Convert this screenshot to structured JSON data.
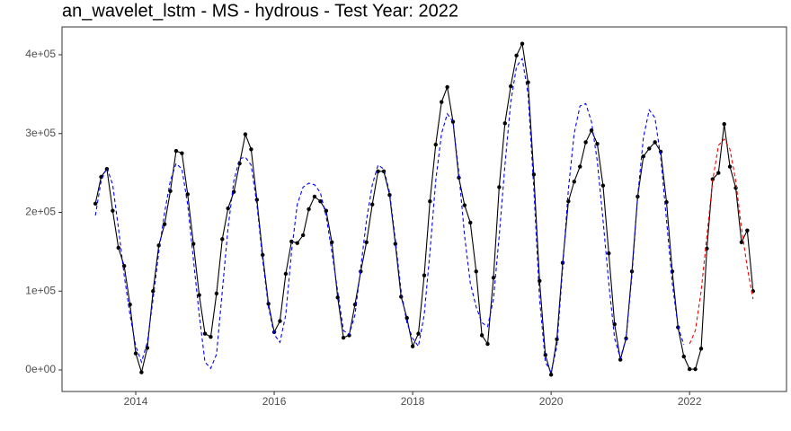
{
  "chart_data": {
    "type": "line",
    "title": "an_wavelet_lstm - MS - hydrous - Test Year: 2022",
    "x": [
      2013.417,
      2013.5,
      2013.583,
      2013.667,
      2013.75,
      2013.833,
      2013.917,
      2014,
      2014.083,
      2014.167,
      2014.25,
      2014.333,
      2014.417,
      2014.5,
      2014.583,
      2014.667,
      2014.75,
      2014.833,
      2014.917,
      2015,
      2015.083,
      2015.167,
      2015.25,
      2015.333,
      2015.417,
      2015.5,
      2015.583,
      2015.667,
      2015.75,
      2015.833,
      2015.917,
      2016,
      2016.083,
      2016.167,
      2016.25,
      2016.333,
      2016.417,
      2016.5,
      2016.583,
      2016.667,
      2016.75,
      2016.833,
      2016.917,
      2017,
      2017.083,
      2017.167,
      2017.25,
      2017.333,
      2017.417,
      2017.5,
      2017.583,
      2017.667,
      2017.75,
      2017.833,
      2017.917,
      2018,
      2018.083,
      2018.167,
      2018.25,
      2018.333,
      2018.417,
      2018.5,
      2018.583,
      2018.667,
      2018.75,
      2018.833,
      2018.917,
      2019,
      2019.083,
      2019.167,
      2019.25,
      2019.333,
      2019.417,
      2019.5,
      2019.583,
      2019.667,
      2019.75,
      2019.833,
      2019.917,
      2020,
      2020.083,
      2020.167,
      2020.25,
      2020.333,
      2020.417,
      2020.5,
      2020.583,
      2020.667,
      2020.75,
      2020.833,
      2020.917,
      2021,
      2021.083,
      2021.167,
      2021.25,
      2021.333,
      2021.417,
      2021.5,
      2021.583,
      2021.667,
      2021.75,
      2021.833,
      2021.917,
      2022,
      2022.083,
      2022.167,
      2022.25,
      2022.333,
      2022.417,
      2022.5,
      2022.583,
      2022.667,
      2022.75,
      2022.833,
      2022.917
    ],
    "series": [
      {
        "color": "#000000",
        "dashed": false,
        "markers": true,
        "values": [
          211000,
          245000,
          255000,
          202000,
          155000,
          132000,
          83000,
          21000,
          -3000,
          28000,
          100000,
          158000,
          185000,
          227000,
          278000,
          275000,
          223000,
          160000,
          95000,
          46000,
          42000,
          97000,
          166000,
          205000,
          226000,
          262000,
          299000,
          280000,
          216000,
          146000,
          84000,
          48000,
          62000,
          122000,
          163000,
          161000,
          171000,
          204000,
          220000,
          214000,
          202000,
          162000,
          92000,
          41000,
          44000,
          83000,
          125000,
          162000,
          210000,
          252000,
          252000,
          222000,
          160000,
          93000,
          66000,
          30000,
          46000,
          120000,
          214000,
          286000,
          340000,
          359000,
          315000,
          244000,
          209000,
          187000,
          125000,
          44000,
          33000,
          117000,
          232000,
          313000,
          360000,
          399000,
          414000,
          365000,
          248000,
          113000,
          19000,
          -6000,
          39000,
          136000,
          214000,
          239000,
          258000,
          289000,
          304000,
          287000,
          234000,
          148000,
          58000,
          13000,
          40000,
          125000,
          220000,
          271000,
          281000,
          289000,
          277000,
          213000,
          125000,
          54000,
          17000,
          1000,
          1000,
          27000,
          154000,
          242000,
          250000,
          312000,
          258000,
          231000,
          162000,
          177000,
          100000
        ]
      },
      {
        "color": "#0000ff",
        "dashed": true,
        "markers": false,
        "values": [
          196000,
          240000,
          257000,
          235000,
          180000,
          120000,
          70000,
          30000,
          10000,
          35000,
          90000,
          150000,
          200000,
          240000,
          262000,
          255000,
          210000,
          140000,
          70000,
          10000,
          2000,
          20000,
          100000,
          180000,
          240000,
          268000,
          270000,
          260000,
          210000,
          140000,
          80000,
          45000,
          35000,
          70000,
          150000,
          210000,
          232000,
          237000,
          235000,
          225000,
          195000,
          150000,
          100000,
          50000,
          45000,
          70000,
          130000,
          190000,
          235000,
          260000,
          255000,
          225000,
          165000,
          100000,
          60000,
          40000,
          30000,
          70000,
          150000,
          240000,
          300000,
          325000,
          315000,
          250000,
          170000,
          110000,
          80000,
          60000,
          55000,
          90000,
          170000,
          260000,
          340000,
          385000,
          395000,
          350000,
          230000,
          90000,
          10000,
          -3000,
          30000,
          130000,
          230000,
          300000,
          335000,
          338000,
          315000,
          265000,
          190000,
          110000,
          40000,
          15000,
          40000,
          120000,
          220000,
          295000,
          330000,
          320000,
          270000,
          190000,
          110000,
          55000,
          32000,
          null,
          null,
          null,
          null,
          null,
          null,
          null,
          null,
          null,
          null,
          null,
          null
        ]
      },
      {
        "color": "#ff0000",
        "dashed": true,
        "markers": false,
        "values": [
          null,
          null,
          null,
          null,
          null,
          null,
          null,
          null,
          null,
          null,
          null,
          null,
          null,
          null,
          null,
          null,
          null,
          null,
          null,
          null,
          null,
          null,
          null,
          null,
          null,
          null,
          null,
          null,
          null,
          null,
          null,
          null,
          null,
          null,
          null,
          null,
          null,
          null,
          null,
          null,
          null,
          null,
          null,
          null,
          null,
          null,
          null,
          null,
          null,
          null,
          null,
          null,
          null,
          null,
          null,
          null,
          null,
          null,
          null,
          null,
          null,
          null,
          null,
          null,
          null,
          null,
          null,
          null,
          null,
          null,
          null,
          null,
          null,
          null,
          null,
          null,
          null,
          null,
          null,
          null,
          null,
          null,
          null,
          null,
          null,
          null,
          null,
          null,
          null,
          null,
          null,
          null,
          null,
          null,
          null,
          null,
          null,
          null,
          null,
          null,
          null,
          null,
          null,
          33000,
          50000,
          100000,
          170000,
          240000,
          285000,
          293000,
          280000,
          240000,
          180000,
          130000,
          90000
        ]
      }
    ],
    "xlim": [
      2012.935,
      2023.4
    ],
    "ylim": [
      -27350,
      435300
    ],
    "xticks": [
      2014,
      2016,
      2018,
      2020,
      2022
    ],
    "yticks": [
      {
        "value": 0,
        "label": "0e+00"
      },
      {
        "value": 100000,
        "label": "1e+05"
      },
      {
        "value": 200000,
        "label": "2e+05"
      },
      {
        "value": 300000,
        "label": "3e+05"
      },
      {
        "value": 400000,
        "label": "4e+05"
      }
    ],
    "grid": false
  }
}
